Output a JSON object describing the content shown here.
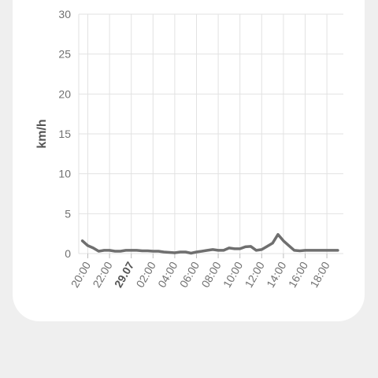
{
  "chart_data": {
    "type": "line",
    "title": "",
    "xlabel": "",
    "ylabel": "km/h",
    "ylim": [
      0,
      30
    ],
    "yticks": [
      0,
      5,
      10,
      15,
      20,
      25,
      30
    ],
    "xtick_labels": [
      "20:00",
      "22:00",
      "29.07",
      "02:00",
      "04:00",
      "06:00",
      "08:00",
      "10:00",
      "12:00",
      "14:00",
      "16:00",
      "18:00"
    ],
    "bold_xtick": "29.07",
    "grid": true,
    "color": "#6f6f6f",
    "series": [
      {
        "x": [
          -0.5,
          0,
          0.5,
          1,
          1.5,
          2,
          2.5,
          3,
          3.5,
          4,
          4.5,
          5,
          5.5,
          6,
          6.5,
          7,
          7.5,
          8,
          8.5,
          9,
          9.5,
          10,
          10.5,
          11,
          11.5,
          12,
          12.5,
          13,
          13.5,
          14,
          14.5,
          15,
          15.5,
          16,
          16.5,
          17,
          17.5,
          18,
          18.5,
          19,
          19.5,
          20,
          20.5,
          21,
          21.5,
          22,
          22.5,
          23
        ],
        "values": [
          1.6,
          1.0,
          0.7,
          0.3,
          0.4,
          0.4,
          0.3,
          0.3,
          0.4,
          0.4,
          0.4,
          0.35,
          0.35,
          0.3,
          0.3,
          0.2,
          0.15,
          0.1,
          0.2,
          0.2,
          0.05,
          0.2,
          0.3,
          0.4,
          0.5,
          0.4,
          0.4,
          0.7,
          0.6,
          0.6,
          0.85,
          0.9,
          0.4,
          0.5,
          0.9,
          1.3,
          2.4,
          1.6,
          1.0,
          0.4,
          0.35,
          0.4,
          0.4,
          0.4,
          0.4,
          0.4,
          0.4,
          0.4
        ]
      }
    ]
  }
}
